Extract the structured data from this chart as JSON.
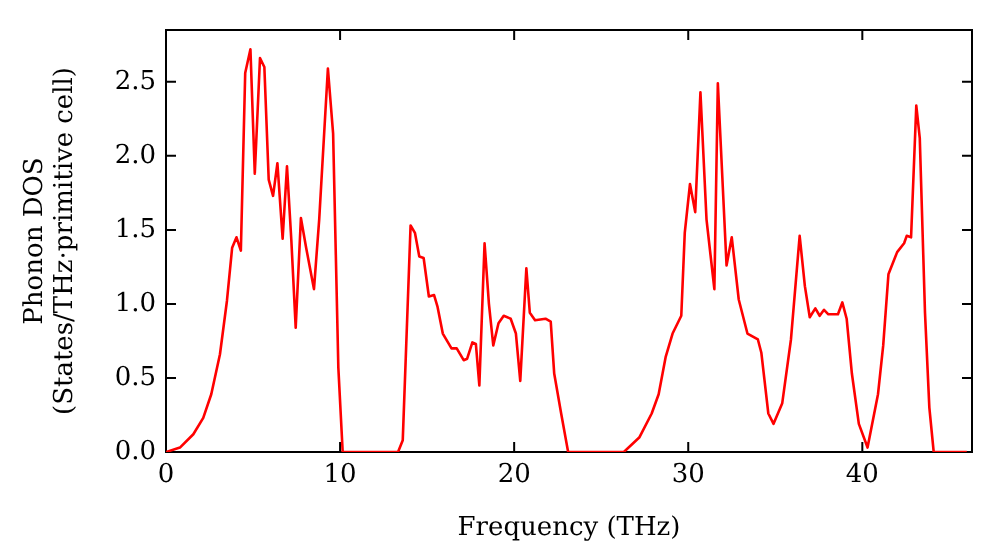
{
  "chart_data": {
    "type": "line",
    "xlabel": "Frequency (THz)",
    "ylabel": "Phonon DOS\n(States/THz·primitive cell)",
    "xlim": [
      0,
      46.3
    ],
    "ylim": [
      0,
      2.85
    ],
    "xticks": [
      0,
      10,
      20,
      30,
      40
    ],
    "yticks": [
      {
        "value": 0,
        "label": "0.0"
      },
      {
        "value": 0.5,
        "label": "0.5"
      },
      {
        "value": 1,
        "label": "1.0"
      },
      {
        "value": 1.5,
        "label": "1.5"
      },
      {
        "value": 2,
        "label": "2.0"
      },
      {
        "value": 2.5,
        "label": "2.5"
      }
    ],
    "grid": false,
    "legend": false,
    "marker": "none",
    "line_style": "solid",
    "series": [
      {
        "color": "#ff0000",
        "x": [
          0,
          0.8,
          1.57,
          2.14,
          2.6,
          3.1,
          3.5,
          3.8,
          4.05,
          4.3,
          4.55,
          4.85,
          5.1,
          5.4,
          5.65,
          5.9,
          6.15,
          6.4,
          6.7,
          6.95,
          7.2,
          7.45,
          7.75,
          8.05,
          8.5,
          8.8,
          9.3,
          9.6,
          9.9,
          10.15,
          13.33,
          13.6,
          14.05,
          14.3,
          14.55,
          14.8,
          15.1,
          15.4,
          15.6,
          15.9,
          16.4,
          16.7,
          17.1,
          17.3,
          17.6,
          17.8,
          18.0,
          18.3,
          18.55,
          18.8,
          19.1,
          19.4,
          19.8,
          20.1,
          20.35,
          20.7,
          20.9,
          21.2,
          21.8,
          22.1,
          22.3,
          22.7,
          23.1,
          26.3,
          27.2,
          27.9,
          28.3,
          28.7,
          29.1,
          29.6,
          29.8,
          30.1,
          30.4,
          30.7,
          31.05,
          31.5,
          31.7,
          32.2,
          32.5,
          32.9,
          33.4,
          34.0,
          34.2,
          34.6,
          34.9,
          35.4,
          35.9,
          36.4,
          36.7,
          36.98,
          37.3,
          37.55,
          37.8,
          38.05,
          38.6,
          38.85,
          39.1,
          39.4,
          39.8,
          40.3,
          40.9,
          41.2,
          41.5,
          42,
          42.4,
          42.55,
          42.8,
          43.1,
          43.3,
          43.6,
          43.85,
          44.1,
          46.0
        ],
        "values": [
          0,
          0.03,
          0.12,
          0.23,
          0.39,
          0.66,
          1.02,
          1.38,
          1.45,
          1.36,
          2.56,
          2.72,
          1.88,
          2.66,
          2.6,
          1.84,
          1.73,
          1.95,
          1.44,
          1.93,
          1.43,
          0.84,
          1.58,
          1.38,
          1.1,
          1.57,
          2.59,
          2.15,
          0.57,
          0,
          0,
          0.08,
          1.53,
          1.48,
          1.32,
          1.31,
          1.05,
          1.06,
          0.98,
          0.8,
          0.7,
          0.7,
          0.62,
          0.63,
          0.74,
          0.73,
          0.45,
          1.41,
          1.0,
          0.72,
          0.87,
          0.92,
          0.9,
          0.8,
          0.48,
          1.24,
          0.94,
          0.89,
          0.9,
          0.88,
          0.53,
          0.26,
          0,
          0,
          0.1,
          0.26,
          0.39,
          0.64,
          0.8,
          0.92,
          1.48,
          1.81,
          1.62,
          2.43,
          1.57,
          1.1,
          2.49,
          1.26,
          1.45,
          1.03,
          0.8,
          0.76,
          0.67,
          0.26,
          0.19,
          0.33,
          0.76,
          1.46,
          1.12,
          0.91,
          0.97,
          0.92,
          0.96,
          0.93,
          0.93,
          1.01,
          0.9,
          0.53,
          0.19,
          0.03,
          0.39,
          0.72,
          1.2,
          1.35,
          1.41,
          1.46,
          1.45,
          2.34,
          2.12,
          0.94,
          0.3,
          0,
          0
        ]
      }
    ]
  }
}
